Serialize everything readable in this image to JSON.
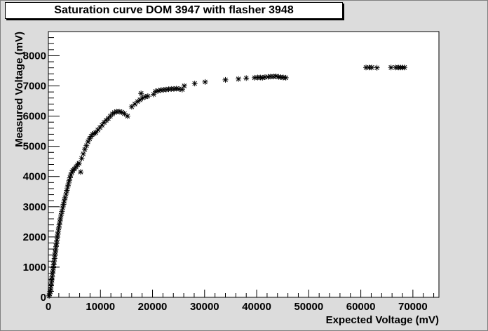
{
  "chart_data": {
    "type": "scatter",
    "title": "Saturation curve DOM 3947 with flasher 3948",
    "xlabel": "Expected Voltage (mV)",
    "ylabel": "Measured Voltage (mV)",
    "xlim": [
      0,
      75000
    ],
    "ylim": [
      0,
      8800
    ],
    "x_ticks": [
      0,
      10000,
      20000,
      30000,
      40000,
      50000,
      60000,
      70000
    ],
    "y_ticks": [
      0,
      1000,
      2000,
      3000,
      4000,
      5000,
      6000,
      7000,
      8000
    ],
    "x_tick_labels": [
      "0",
      "10000",
      "20000",
      "30000",
      "40000",
      "50000",
      "60000",
      "70000"
    ],
    "y_tick_labels": [
      "0",
      "1000",
      "2000",
      "3000",
      "4000",
      "5000",
      "6000",
      "7000",
      "8000"
    ],
    "grid": false,
    "legend": "none",
    "marker": "star",
    "marker_color": "#000000",
    "points": [
      [
        150,
        50
      ],
      [
        250,
        120
      ],
      [
        350,
        200
      ],
      [
        420,
        280
      ],
      [
        500,
        380
      ],
      [
        580,
        480
      ],
      [
        650,
        580
      ],
      [
        720,
        680
      ],
      [
        800,
        790
      ],
      [
        870,
        880
      ],
      [
        950,
        980
      ],
      [
        1020,
        1080
      ],
      [
        1100,
        1180
      ],
      [
        1180,
        1290
      ],
      [
        1250,
        1390
      ],
      [
        1330,
        1490
      ],
      [
        1400,
        1580
      ],
      [
        1480,
        1690
      ],
      [
        1560,
        1780
      ],
      [
        1640,
        1890
      ],
      [
        1720,
        1990
      ],
      [
        1800,
        2090
      ],
      [
        1900,
        2190
      ],
      [
        2000,
        2300
      ],
      [
        2100,
        2400
      ],
      [
        2200,
        2500
      ],
      [
        2300,
        2600
      ],
      [
        2450,
        2720
      ],
      [
        2600,
        2840
      ],
      [
        2750,
        2960
      ],
      [
        2900,
        3080
      ],
      [
        3050,
        3190
      ],
      [
        3200,
        3300
      ],
      [
        3400,
        3420
      ],
      [
        3550,
        3540
      ],
      [
        3700,
        3650
      ],
      [
        3850,
        3760
      ],
      [
        4000,
        3860
      ],
      [
        4150,
        3960
      ],
      [
        4300,
        4050
      ],
      [
        4500,
        4140
      ],
      [
        4700,
        4200
      ],
      [
        5000,
        4250
      ],
      [
        5300,
        4320
      ],
      [
        5600,
        4390
      ],
      [
        5900,
        4440
      ],
      [
        6200,
        4150
      ],
      [
        6400,
        4600
      ],
      [
        6700,
        4750
      ],
      [
        7000,
        4900
      ],
      [
        7300,
        5020
      ],
      [
        7600,
        5150
      ],
      [
        7900,
        5250
      ],
      [
        8200,
        5330
      ],
      [
        8500,
        5400
      ],
      [
        8800,
        5430
      ],
      [
        9100,
        5450
      ],
      [
        9500,
        5540
      ],
      [
        9900,
        5620
      ],
      [
        10300,
        5700
      ],
      [
        10700,
        5790
      ],
      [
        11100,
        5860
      ],
      [
        11500,
        5920
      ],
      [
        11900,
        6000
      ],
      [
        12300,
        6070
      ],
      [
        12700,
        6120
      ],
      [
        13100,
        6150
      ],
      [
        13600,
        6150
      ],
      [
        14100,
        6130
      ],
      [
        14600,
        6080
      ],
      [
        15200,
        6000
      ],
      [
        16000,
        6310
      ],
      [
        16600,
        6400
      ],
      [
        17100,
        6480
      ],
      [
        17600,
        6540
      ],
      [
        18100,
        6600
      ],
      [
        18600,
        6640
      ],
      [
        19100,
        6660
      ],
      [
        17800,
        6750
      ],
      [
        20200,
        6720
      ],
      [
        20600,
        6820
      ],
      [
        21100,
        6840
      ],
      [
        21600,
        6860
      ],
      [
        22100,
        6870
      ],
      [
        22600,
        6880
      ],
      [
        23100,
        6890
      ],
      [
        23600,
        6900
      ],
      [
        24100,
        6900
      ],
      [
        24600,
        6910
      ],
      [
        25100,
        6900
      ],
      [
        25700,
        6880
      ],
      [
        26100,
        7000
      ],
      [
        28100,
        7080
      ],
      [
        30100,
        7130
      ],
      [
        34000,
        7200
      ],
      [
        36500,
        7230
      ],
      [
        38000,
        7260
      ],
      [
        39600,
        7270
      ],
      [
        40200,
        7280
      ],
      [
        40700,
        7280
      ],
      [
        41100,
        7270
      ],
      [
        41600,
        7290
      ],
      [
        42200,
        7300
      ],
      [
        42700,
        7310
      ],
      [
        43200,
        7310
      ],
      [
        43700,
        7320
      ],
      [
        44200,
        7300
      ],
      [
        44600,
        7290
      ],
      [
        45100,
        7280
      ],
      [
        45600,
        7270
      ],
      [
        61000,
        7610
      ],
      [
        61600,
        7610
      ],
      [
        62100,
        7610
      ],
      [
        63100,
        7600
      ],
      [
        65800,
        7610
      ],
      [
        66700,
        7610
      ],
      [
        67200,
        7610
      ],
      [
        67600,
        7610
      ],
      [
        68000,
        7610
      ],
      [
        68400,
        7610
      ]
    ]
  }
}
